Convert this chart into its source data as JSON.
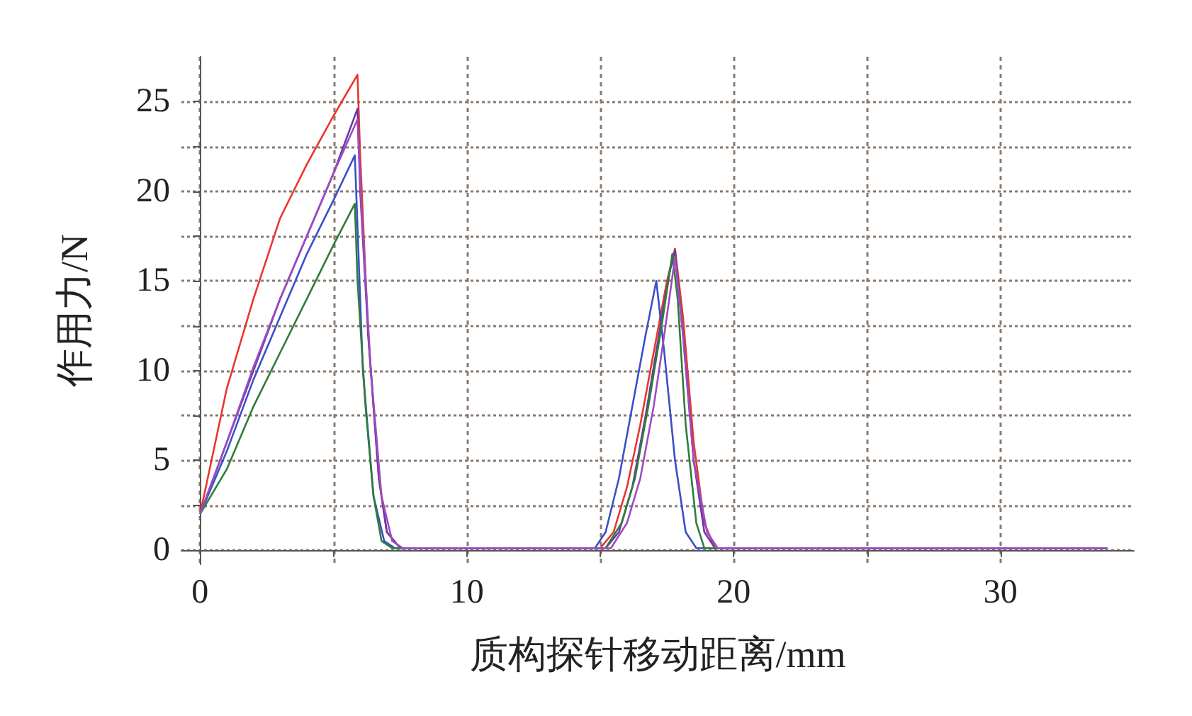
{
  "chart_data": {
    "type": "line",
    "xlabel": "质构探针移动距离/mm",
    "ylabel": "作用力/N",
    "xlim": [
      -0.7,
      35
    ],
    "ylim": [
      -0.8,
      27.5
    ],
    "xticks": [
      0,
      {
        "value": 5,
        "label": null
      },
      10,
      {
        "value": 15,
        "label": null
      },
      20,
      {
        "value": 25,
        "label": null
      },
      30
    ],
    "yticks": [
      0,
      {
        "value": 2.5,
        "label": null
      },
      5,
      {
        "value": 7.5,
        "label": null
      },
      10,
      {
        "value": 12.5,
        "label": null
      },
      15,
      {
        "value": 17.5,
        "label": null
      },
      20,
      {
        "value": 22.5,
        "label": null
      },
      25
    ],
    "grid": true,
    "marker": "none",
    "line_style": "solid",
    "series": [
      {
        "color": "#e8362f",
        "x": [
          0,
          1,
          2,
          3,
          4,
          5,
          5.9,
          6.0,
          6.3,
          6.7,
          7.0,
          7.5,
          15,
          15.5,
          16,
          16.5,
          17,
          17.5,
          17.8,
          18.1,
          18.5,
          18.9,
          19.3,
          34
        ],
        "values": [
          2,
          9,
          14,
          18.5,
          21.5,
          24.2,
          26.5,
          22,
          12,
          4,
          1,
          0.1,
          0.1,
          1,
          3.5,
          7,
          11,
          15,
          16.8,
          13,
          6,
          1.5,
          0.1,
          0.1
        ]
      },
      {
        "color": "#6a3aa8",
        "x": [
          0,
          1,
          2,
          3,
          4,
          5,
          5.9,
          6.0,
          6.3,
          6.7,
          7.0,
          7.5,
          15.2,
          15.7,
          16.2,
          16.7,
          17.2,
          17.6,
          17.8,
          18.1,
          18.5,
          18.9,
          19.3,
          34
        ],
        "values": [
          2,
          6,
          10,
          14,
          17.5,
          21,
          24.6,
          20,
          12,
          4,
          1,
          0.1,
          0.1,
          1,
          3.5,
          7.5,
          12,
          15.5,
          16.7,
          12,
          5,
          1,
          0.1,
          0.1
        ]
      },
      {
        "color": "#3a4fc8",
        "x": [
          0,
          1,
          2,
          3,
          4,
          5,
          5.8,
          5.9,
          6.1,
          6.5,
          6.9,
          7.3,
          14.8,
          15.2,
          15.7,
          16.2,
          16.7,
          17.1,
          17.4,
          17.8,
          18.2,
          18.6,
          34
        ],
        "values": [
          2,
          5.5,
          9.5,
          13,
          16.5,
          19.5,
          22,
          18,
          10,
          3,
          0.5,
          0.1,
          0.1,
          1,
          4,
          8,
          12,
          15,
          11,
          5,
          1,
          0.1,
          0.1
        ]
      },
      {
        "color": "#2e7d3a",
        "x": [
          0,
          1,
          2,
          3,
          4,
          5,
          5.8,
          5.9,
          6.2,
          6.5,
          6.8,
          7.2,
          15.2,
          15.8,
          16.3,
          16.8,
          17.3,
          17.7,
          17.9,
          18.2,
          18.6,
          18.9,
          34
        ],
        "values": [
          2,
          4.5,
          8,
          11,
          14,
          17,
          19.3,
          15,
          8,
          3,
          0.5,
          0.1,
          0.1,
          1.5,
          4,
          8,
          12.5,
          16.5,
          14,
          7,
          1.5,
          0.1,
          0.1
        ]
      },
      {
        "color": "#9b4cc0",
        "x": [
          0,
          1,
          2,
          3,
          4,
          5,
          5.9,
          6.05,
          6.4,
          6.8,
          7.2,
          7.6,
          15.4,
          16,
          16.5,
          17,
          17.4,
          17.8,
          18.1,
          18.5,
          19,
          19.4,
          34
        ],
        "values": [
          2,
          6,
          10.2,
          14,
          17.5,
          21,
          24,
          19,
          10,
          3,
          0.5,
          0.1,
          0.1,
          1.5,
          4,
          8,
          12,
          16.3,
          12,
          5,
          1,
          0.1,
          0.1
        ]
      }
    ]
  }
}
